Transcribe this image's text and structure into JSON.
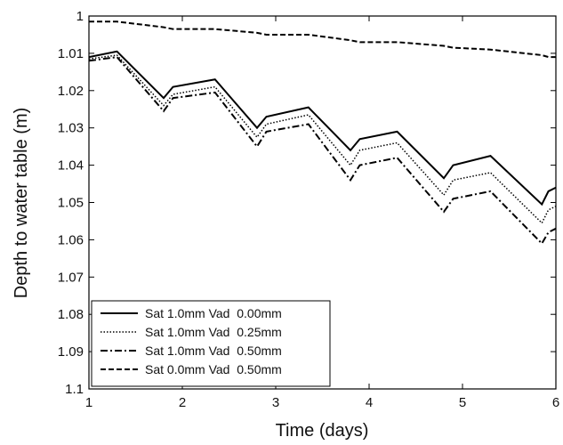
{
  "chart_data": {
    "type": "line",
    "x_label": "Time (days)",
    "y_label": "Depth to water table (m)",
    "x": [
      1,
      1.3,
      1.8,
      1.9,
      2.35,
      2.8,
      2.9,
      3.35,
      3.8,
      3.9,
      4.3,
      4.8,
      4.9,
      5.3,
      5.85,
      5.92,
      6
    ],
    "xlim": [
      1,
      6
    ],
    "xticks": [
      1,
      2,
      3,
      4,
      5,
      6
    ],
    "ylim": [
      1,
      1.1
    ],
    "yticks": [
      1,
      1.01,
      1.02,
      1.03,
      1.04,
      1.05,
      1.06,
      1.07,
      1.08,
      1.09,
      1.1
    ],
    "y_inverted": true,
    "legend": "lower left",
    "series": [
      {
        "name": "Sat 1.0mm Vad  0.00mm",
        "color": "#000000",
        "dash": "solid",
        "values": [
          1.011,
          1.0095,
          1.022,
          1.019,
          1.017,
          1.03,
          1.027,
          1.0245,
          1.036,
          1.033,
          1.031,
          1.0435,
          1.04,
          1.0375,
          1.0505,
          1.047,
          1.046
        ]
      },
      {
        "name": "Sat 1.0mm Vad  0.25mm",
        "color": "#000000",
        "dash": "dotted",
        "values": [
          1.0115,
          1.0105,
          1.024,
          1.021,
          1.019,
          1.0325,
          1.029,
          1.0265,
          1.04,
          1.036,
          1.034,
          1.048,
          1.044,
          1.042,
          1.0555,
          1.052,
          1.051
        ]
      },
      {
        "name": "Sat 1.0mm Vad  0.50mm",
        "color": "#000000",
        "dash": "dashdot",
        "values": [
          1.012,
          1.011,
          1.0255,
          1.022,
          1.0205,
          1.035,
          1.031,
          1.029,
          1.044,
          1.04,
          1.038,
          1.0525,
          1.049,
          1.047,
          1.061,
          1.058,
          1.057
        ]
      },
      {
        "name": "Sat 0.0mm Vad  0.50mm",
        "color": "#000000",
        "dash": "dashed",
        "values": [
          1.0015,
          1.0015,
          1.003,
          1.0035,
          1.0035,
          1.0045,
          1.005,
          1.005,
          1.0065,
          1.007,
          1.007,
          1.008,
          1.0085,
          1.009,
          1.0105,
          1.011,
          1.011
        ]
      }
    ]
  }
}
